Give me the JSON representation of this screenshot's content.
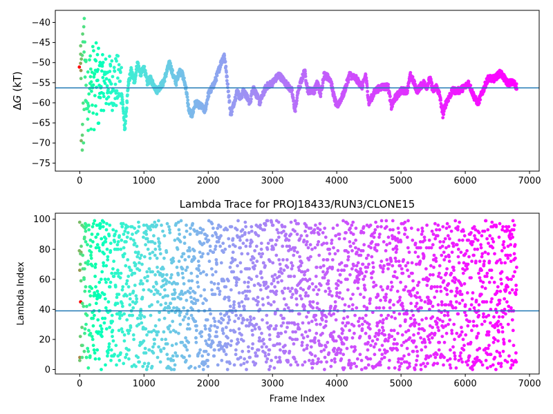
{
  "chart_data": [
    {
      "type": "scatter",
      "title": "",
      "xlabel": "",
      "ylabel_prefix": "Δ",
      "ylabel_var": "G",
      "ylabel_suffix": " (kT)",
      "xlim": [
        -380,
        7150
      ],
      "ylim": [
        -77,
        -37
      ],
      "xticks": [
        0,
        1000,
        2000,
        3000,
        4000,
        5000,
        6000,
        7000
      ],
      "yticks": [
        -75,
        -70,
        -65,
        -60,
        -55,
        -50,
        -45,
        -40
      ],
      "hline": {
        "y": -56.3,
        "color": "#1f77b4"
      },
      "colormap": "rainbow (reversed with frame index)",
      "n_frames": 6800,
      "trace_anchors": [
        [
          650,
          -57
        ],
        [
          680,
          -62
        ],
        [
          700,
          -67
        ],
        [
          730,
          -61
        ],
        [
          760,
          -55
        ],
        [
          800,
          -52
        ],
        [
          850,
          -55
        ],
        [
          900,
          -50
        ],
        [
          950,
          -53
        ],
        [
          1000,
          -51
        ],
        [
          1050,
          -55
        ],
        [
          1100,
          -54
        ],
        [
          1200,
          -57
        ],
        [
          1300,
          -55
        ],
        [
          1400,
          -50
        ],
        [
          1450,
          -53
        ],
        [
          1500,
          -55
        ],
        [
          1550,
          -52
        ],
        [
          1600,
          -53
        ],
        [
          1650,
          -56
        ],
        [
          1700,
          -62
        ],
        [
          1750,
          -63
        ],
        [
          1800,
          -60
        ],
        [
          1900,
          -61
        ],
        [
          1950,
          -62
        ],
        [
          2000,
          -58
        ],
        [
          2100,
          -55
        ],
        [
          2200,
          -50
        ],
        [
          2250,
          -48
        ],
        [
          2300,
          -55
        ],
        [
          2350,
          -63
        ],
        [
          2400,
          -60
        ],
        [
          2450,
          -57
        ],
        [
          2500,
          -59
        ],
        [
          2550,
          -57
        ],
        [
          2650,
          -60
        ],
        [
          2700,
          -56
        ],
        [
          2800,
          -60
        ],
        [
          2900,
          -56
        ],
        [
          3000,
          -55
        ],
        [
          3100,
          -53
        ],
        [
          3200,
          -55
        ],
        [
          3300,
          -57
        ],
        [
          3350,
          -62
        ],
        [
          3400,
          -57
        ],
        [
          3500,
          -52
        ],
        [
          3550,
          -57
        ],
        [
          3650,
          -57
        ],
        [
          3700,
          -55
        ],
        [
          3750,
          -58
        ],
        [
          3800,
          -53
        ],
        [
          3900,
          -54
        ],
        [
          3950,
          -58
        ],
        [
          4000,
          -61
        ],
        [
          4100,
          -58
        ],
        [
          4200,
          -53
        ],
        [
          4300,
          -54
        ],
        [
          4400,
          -56
        ],
        [
          4450,
          -53
        ],
        [
          4500,
          -60
        ],
        [
          4600,
          -57
        ],
        [
          4700,
          -56
        ],
        [
          4800,
          -56
        ],
        [
          4850,
          -61
        ],
        [
          4900,
          -59
        ],
        [
          5000,
          -57
        ],
        [
          5100,
          -57
        ],
        [
          5150,
          -53
        ],
        [
          5250,
          -57
        ],
        [
          5350,
          -55
        ],
        [
          5400,
          -56
        ],
        [
          5450,
          -54
        ],
        [
          5500,
          -57
        ],
        [
          5550,
          -56
        ],
        [
          5600,
          -58
        ],
        [
          5650,
          -63
        ],
        [
          5700,
          -60
        ],
        [
          5800,
          -57
        ],
        [
          5900,
          -57
        ],
        [
          6000,
          -56
        ],
        [
          6050,
          -55
        ],
        [
          6150,
          -59
        ],
        [
          6200,
          -60
        ],
        [
          6300,
          -56
        ],
        [
          6350,
          -54
        ],
        [
          6450,
          -54
        ],
        [
          6550,
          -52.5
        ],
        [
          6650,
          -55
        ],
        [
          6750,
          -55
        ],
        [
          6800,
          -56
        ]
      ]
    },
    {
      "type": "scatter",
      "title": "Lambda Trace for PROJ18433/RUN3/CLONE15",
      "xlabel": "Frame Index",
      "ylabel": "Lambda Index",
      "xlim": [
        -380,
        7150
      ],
      "ylim": [
        -3,
        104
      ],
      "xticks": [
        0,
        1000,
        2000,
        3000,
        4000,
        5000,
        6000,
        7000
      ],
      "yticks": [
        0,
        20,
        40,
        60,
        80,
        100
      ],
      "hline": {
        "y": 39,
        "color": "#1f77b4"
      },
      "colormap": "rainbow (reversed with frame index)",
      "lambda_range": [
        0,
        99
      ],
      "n_frames": 6800
    }
  ]
}
